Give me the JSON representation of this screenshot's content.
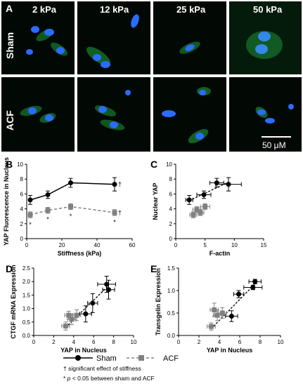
{
  "panels": {
    "a": {
      "letter": "A",
      "columns": [
        "2 kPa",
        "12 kPa",
        "25 kPa",
        "50 kPa"
      ],
      "rows": [
        "Sham",
        "ACF"
      ],
      "scale_bar": "50 μM"
    },
    "b": {
      "letter": "B"
    },
    "c": {
      "letter": "C"
    },
    "d": {
      "letter": "D"
    },
    "e": {
      "letter": "E"
    }
  },
  "legend": {
    "sham": "Sham",
    "acf": "ACF",
    "note1": "† significant effect of stiffness",
    "note2_star": "* ",
    "note2_p": "p",
    "note2_rest": " < 0.05 between sham and ACF"
  },
  "colors": {
    "sham": "#000000",
    "acf": "#808080",
    "nucleus": "#2a6cff",
    "actin": "#1e9a3a"
  },
  "chart_data": [
    {
      "id": "B",
      "type": "line",
      "xlabel": "Stiffness (kPa)",
      "ylabel": "YAP Fluorescence in Nucleus",
      "xlim": [
        0,
        60
      ],
      "ylim": [
        0,
        10
      ],
      "xticks": [
        0,
        20,
        40,
        60
      ],
      "yticks": [
        0,
        2,
        4,
        6,
        8,
        10
      ],
      "series": [
        {
          "key": "sham",
          "x": [
            2,
            12,
            25,
            50
          ],
          "y": [
            5.2,
            5.9,
            7.5,
            7.3
          ],
          "yerr": [
            0.6,
            0.5,
            0.6,
            0.9
          ],
          "style": "solid",
          "marker": "circle"
        },
        {
          "key": "acf",
          "x": [
            2,
            12,
            25,
            50
          ],
          "y": [
            3.2,
            3.8,
            4.3,
            3.5
          ],
          "yerr": [
            0.4,
            0.4,
            0.4,
            0.4
          ],
          "style": "dashed",
          "marker": "square"
        }
      ],
      "annotations": [
        {
          "text": "†",
          "x": 53,
          "y": 7.3
        },
        {
          "text": "†",
          "x": 53,
          "y": 3.5
        },
        {
          "text": "*",
          "x": 2,
          "y": 1.9
        },
        {
          "text": "*",
          "x": 12,
          "y": 2.6
        },
        {
          "text": "*",
          "x": 25,
          "y": 3.0
        },
        {
          "text": "*",
          "x": 50,
          "y": 2.2
        }
      ]
    },
    {
      "id": "C",
      "type": "scatter",
      "xlabel": "F-actin",
      "ylabel": "Nuclear YAP",
      "xlim": [
        0,
        15
      ],
      "ylim": [
        0,
        10
      ],
      "xticks": [
        0,
        5,
        10,
        15
      ],
      "yticks": [
        0,
        2,
        4,
        6,
        8,
        10
      ],
      "series": [
        {
          "key": "sham",
          "x": [
            2.3,
            4.8,
            7.0,
            9.0
          ],
          "y": [
            5.2,
            5.9,
            7.5,
            7.3
          ],
          "xerr": [
            0.6,
            1.2,
            1.2,
            2.2
          ],
          "yerr": [
            0.6,
            0.5,
            0.6,
            0.9
          ],
          "marker": "circle"
        },
        {
          "key": "acf",
          "x": [
            3.0,
            3.6,
            4.2,
            5.0
          ],
          "y": [
            3.2,
            3.9,
            3.5,
            4.3
          ],
          "xerr": [
            0.6,
            0.7,
            0.6,
            0.8
          ],
          "yerr": [
            0.4,
            0.4,
            0.4,
            0.4
          ],
          "marker": "square"
        }
      ],
      "fit": {
        "x": [
          2.3,
          9.0
        ],
        "y": [
          5.1,
          7.6
        ]
      }
    },
    {
      "id": "D",
      "type": "scatter",
      "xlabel": "YAP in Nucleus",
      "ylabel": "CTGF mRNA Expression",
      "xlim": [
        0,
        10
      ],
      "ylim": [
        0,
        2.5
      ],
      "xticks": [
        0,
        2,
        4,
        6,
        8,
        10
      ],
      "yticks": [
        0.0,
        0.5,
        1.0,
        1.5,
        2.0,
        2.5
      ],
      "series": [
        {
          "key": "sham",
          "x": [
            5.2,
            5.9,
            7.3,
            7.5
          ],
          "y": [
            0.8,
            1.2,
            1.9,
            1.7
          ],
          "xerr": [
            0.6,
            0.5,
            0.9,
            0.6
          ],
          "yerr": [
            0.3,
            0.35,
            0.3,
            0.35
          ],
          "marker": "circle"
        },
        {
          "key": "acf",
          "x": [
            3.2,
            3.5,
            3.8,
            4.3
          ],
          "y": [
            0.35,
            0.75,
            0.6,
            0.75
          ],
          "xerr": [
            0.4,
            0.4,
            0.4,
            0.4
          ],
          "yerr": [
            0.15,
            0.15,
            0.2,
            0.2
          ],
          "marker": "square"
        }
      ],
      "fit": {
        "x": [
          3.2,
          7.5
        ],
        "y": [
          0.3,
          1.85
        ]
      }
    },
    {
      "id": "E",
      "type": "scatter",
      "xlabel": "YAP in Nucleus",
      "ylabel": "Transgelin Expression",
      "xlim": [
        0,
        10
      ],
      "ylim": [
        0,
        1.5
      ],
      "xticks": [
        0,
        2,
        4,
        6,
        8,
        10
      ],
      "yticks": [
        0.0,
        0.5,
        1.0,
        1.5
      ],
      "series": [
        {
          "key": "sham",
          "x": [
            5.2,
            5.9,
            7.3,
            7.5
          ],
          "y": [
            0.43,
            0.92,
            1.07,
            1.2
          ],
          "xerr": [
            0.6,
            0.5,
            0.9,
            0.6
          ],
          "yerr": [
            0.12,
            0.08,
            0.05,
            0.05
          ],
          "marker": "circle"
        },
        {
          "key": "acf",
          "x": [
            3.2,
            3.5,
            3.8,
            4.3
          ],
          "y": [
            0.2,
            0.57,
            0.45,
            0.5
          ],
          "xerr": [
            0.4,
            0.4,
            0.4,
            0.4
          ],
          "yerr": [
            0.08,
            0.15,
            0.12,
            0.12
          ],
          "marker": "square"
        }
      ],
      "fit": {
        "x": [
          3.2,
          7.5
        ],
        "y": [
          0.15,
          1.15
        ]
      }
    }
  ]
}
